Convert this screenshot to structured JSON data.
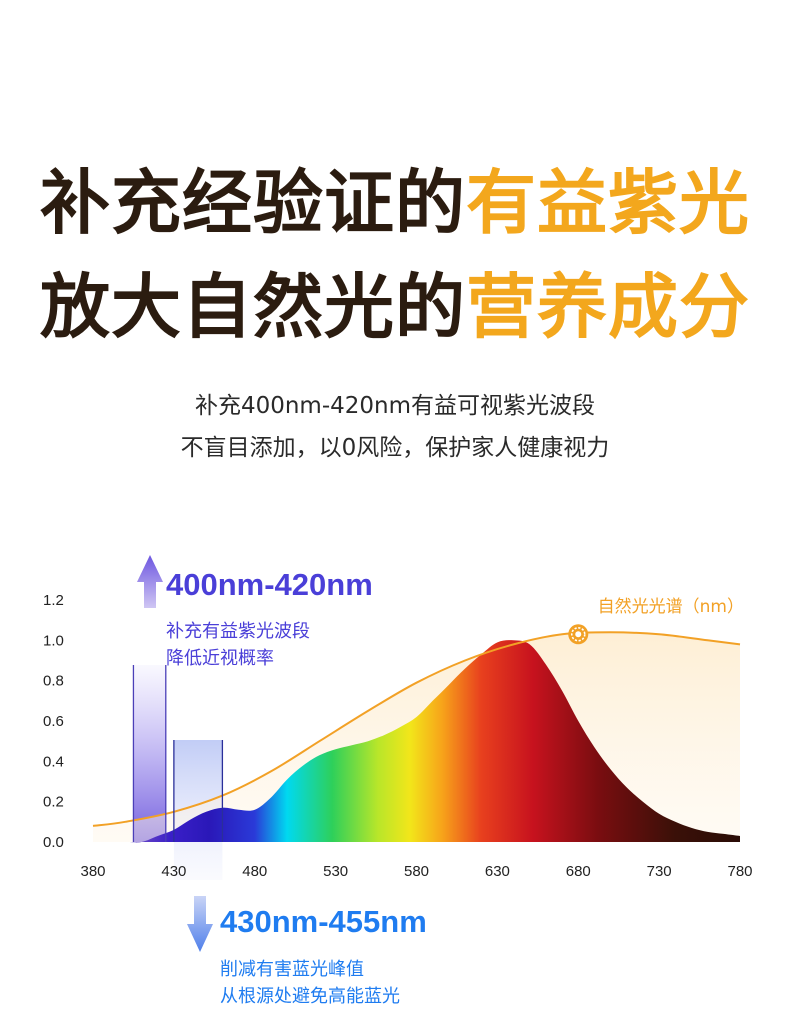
{
  "header": {
    "line1_dark": "补充经验证的",
    "line1_accent": "有益紫光",
    "line2_dark": "放大自然光的",
    "line2_accent": "营养成分",
    "subtitle1": "补充400nm-420nm有益可视紫光波段",
    "subtitle2": "不盲目添加，以0风险，保护家人健康视力"
  },
  "colors": {
    "dark_text": "#2b1c10",
    "accent": "#f3a71d",
    "violet": "#4a3fd8",
    "blue": "#1f7cf0",
    "natural_curve": "#f2a126"
  },
  "chart_data": {
    "type": "area",
    "xlim": [
      380,
      780
    ],
    "ylim": [
      0,
      1.2
    ],
    "x_ticks": [
      380,
      430,
      480,
      530,
      580,
      630,
      680,
      730,
      780
    ],
    "y_ticks": [
      "0.0",
      "0.2",
      "0.4",
      "0.6",
      "0.8",
      "1.0",
      "1.2"
    ],
    "series": [
      {
        "name": "自然光光谱（nm）",
        "x": [
          380,
          400,
          430,
          460,
          490,
          520,
          550,
          580,
          610,
          640,
          670,
          700,
          730,
          760,
          780
        ],
        "y": [
          0.08,
          0.1,
          0.15,
          0.23,
          0.35,
          0.5,
          0.65,
          0.79,
          0.9,
          0.98,
          1.03,
          1.04,
          1.03,
          1.0,
          0.98
        ]
      },
      {
        "x": [
          380,
          400,
          410,
          420,
          430,
          440,
          450,
          460,
          470,
          480,
          490,
          500,
          510,
          520,
          530,
          540,
          550,
          560,
          570,
          580,
          590,
          600,
          610,
          620,
          630,
          640,
          650,
          660,
          670,
          680,
          690,
          700,
          710,
          720,
          730,
          740,
          750,
          760,
          770,
          780
        ],
        "y": [
          0.0,
          0.0,
          0.0,
          0.03,
          0.06,
          0.11,
          0.15,
          0.17,
          0.16,
          0.16,
          0.22,
          0.31,
          0.38,
          0.43,
          0.46,
          0.48,
          0.5,
          0.53,
          0.57,
          0.62,
          0.7,
          0.78,
          0.86,
          0.93,
          0.99,
          1.0,
          0.98,
          0.88,
          0.75,
          0.6,
          0.47,
          0.36,
          0.27,
          0.2,
          0.14,
          0.1,
          0.07,
          0.05,
          0.04,
          0.03
        ]
      }
    ],
    "bands": [
      {
        "label": "400nm-420nm",
        "desc1": "补充有益紫光波段",
        "desc2": "降低近视概率",
        "range": [
          405,
          425
        ],
        "direction": "up"
      },
      {
        "label": "430nm-455nm",
        "desc1": "削减有害蓝光峰值",
        "desc2": "从根源处避免高能蓝光",
        "range": [
          430,
          460
        ],
        "direction": "down"
      }
    ]
  }
}
